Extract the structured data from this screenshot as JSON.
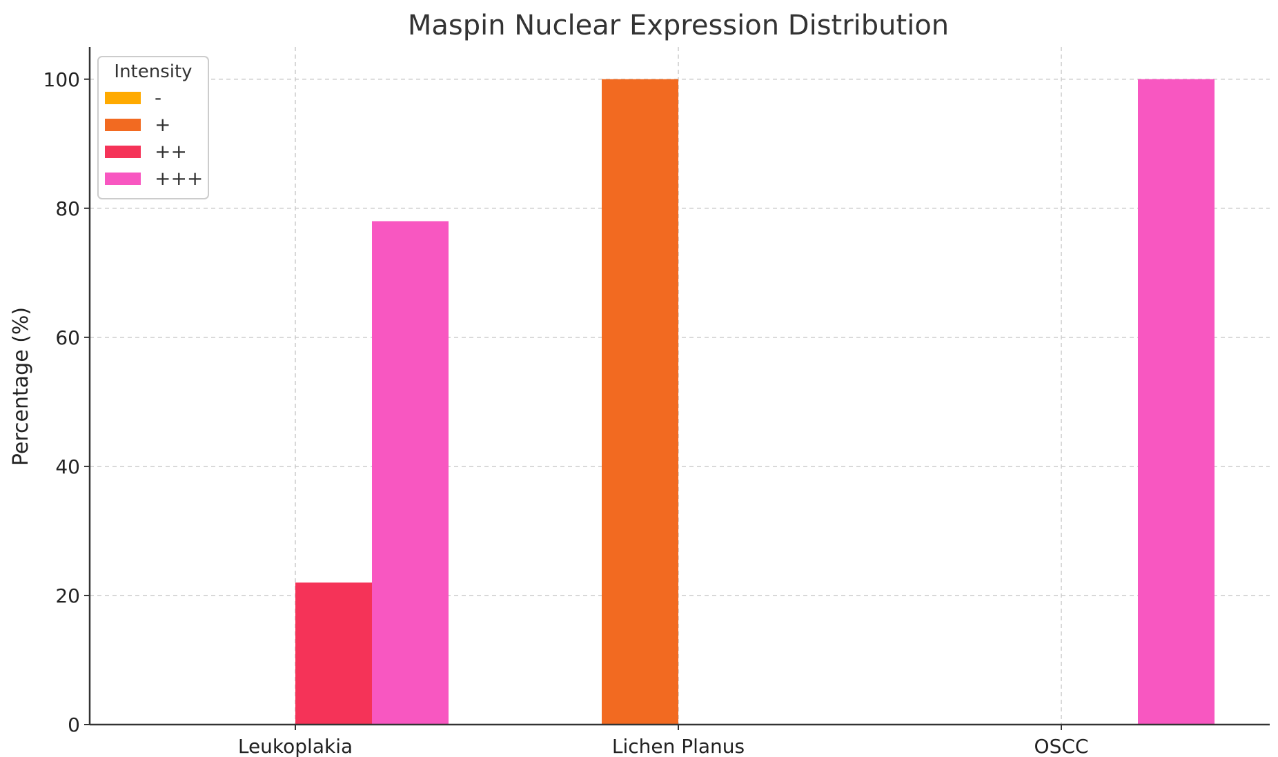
{
  "chart_data": {
    "type": "bar",
    "title": "Maspin Nuclear Expression Distribution",
    "xlabel": "",
    "ylabel": "Percentage (%)",
    "categories": [
      "Leukoplakia",
      "Lichen Planus",
      "OSCC"
    ],
    "ylim": [
      0,
      105
    ],
    "yticks": [
      0,
      20,
      40,
      60,
      80,
      100
    ],
    "grid": true,
    "legend": {
      "title": "Intensity",
      "placement": "top-left"
    },
    "series": [
      {
        "name": "-",
        "color": "#FFAA00",
        "values": [
          0,
          0,
          0
        ]
      },
      {
        "name": "+",
        "color": "#F26A21",
        "values": [
          0,
          100,
          0
        ]
      },
      {
        "name": "++",
        "color": "#F53358",
        "values": [
          22,
          0,
          0
        ]
      },
      {
        "name": "+++",
        "color": "#F857C1",
        "values": [
          78,
          0,
          100
        ]
      }
    ]
  }
}
